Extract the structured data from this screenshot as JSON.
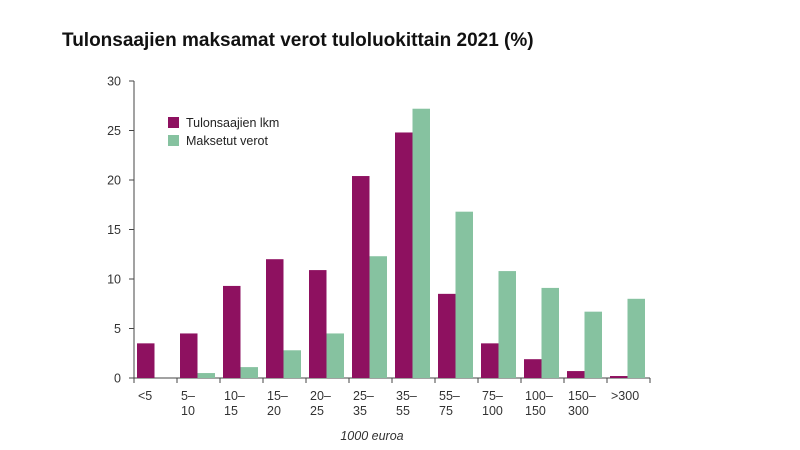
{
  "chart_data": {
    "type": "bar",
    "title": "Tulonsaajien maksamat verot tuloluokittain 2021 (%)",
    "xlabel": "1000  euroa",
    "ylabel": "",
    "ylim": [
      0,
      30
    ],
    "yticks": [
      0,
      5,
      10,
      15,
      20,
      25,
      30
    ],
    "categories": [
      [
        "<5"
      ],
      [
        "5–",
        "10"
      ],
      [
        "10–",
        "15"
      ],
      [
        "15–",
        "20"
      ],
      [
        "20–",
        "25"
      ],
      [
        "25–",
        "35"
      ],
      [
        "35–",
        "55"
      ],
      [
        "55–",
        "75"
      ],
      [
        "75–",
        "100"
      ],
      [
        "100–",
        "150"
      ],
      [
        "150–",
        "300"
      ],
      [
        ">300"
      ]
    ],
    "series": [
      {
        "name": "Tulonsaajien lkm",
        "color": "#8e1160",
        "values": [
          3.5,
          4.5,
          9.3,
          12.0,
          10.9,
          20.4,
          24.8,
          8.5,
          3.5,
          1.9,
          0.7,
          0.2
        ]
      },
      {
        "name": "Maksetut verot",
        "color": "#86c2a0",
        "values": [
          0,
          0.5,
          1.1,
          2.8,
          4.5,
          12.3,
          27.2,
          16.8,
          10.8,
          9.1,
          6.7,
          8.0
        ]
      }
    ],
    "legend_position": "top-left",
    "grid": false
  }
}
